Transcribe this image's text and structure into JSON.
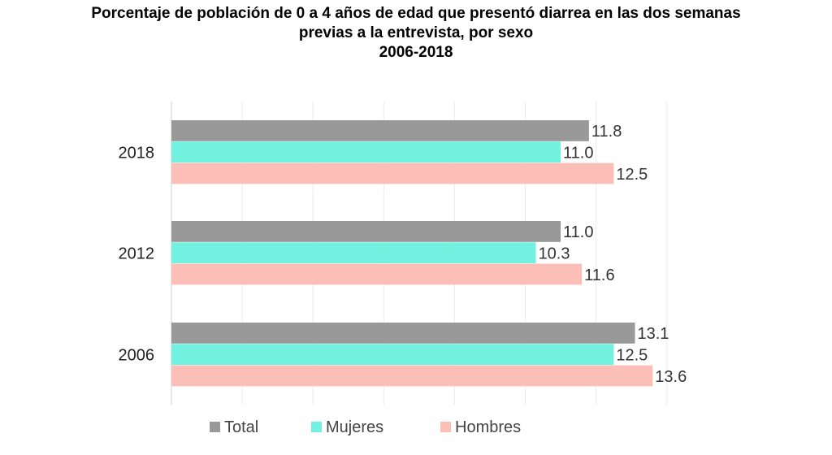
{
  "chart_data": {
    "type": "bar",
    "orientation": "horizontal",
    "title": [
      "Porcentaje de población de 0 a 4 años de edad que presentó diarrea en las dos semanas",
      "previas a la entrevista, por sexo",
      "2006-2018"
    ],
    "categories": [
      "2018",
      "2012",
      "2006"
    ],
    "series": [
      {
        "name": "Total",
        "color": "#999999",
        "values": [
          11.8,
          11.0,
          13.1
        ],
        "labels": [
          "11.8",
          "11.0",
          "13.1"
        ]
      },
      {
        "name": "Mujeres",
        "color": "#72f0e0",
        "values": [
          11.0,
          10.3,
          12.5
        ],
        "labels": [
          "11.0",
          "10.3",
          "12.5"
        ]
      },
      {
        "name": "Hombres",
        "color": "#fbbfb7",
        "values": [
          12.5,
          11.6,
          13.6
        ],
        "labels": [
          "12.5",
          "11.6",
          "13.6"
        ]
      }
    ],
    "xlim": [
      0,
      14
    ],
    "grid": true,
    "legend": "bottom"
  }
}
